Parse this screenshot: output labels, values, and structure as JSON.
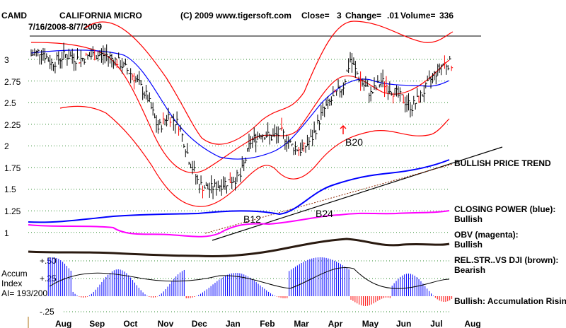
{
  "chart_data": {
    "type": "line",
    "title": {
      "ticker": "CAMD",
      "company": "CALIFORNIA MICRO",
      "source": "(C) 2009 www.tigersoft.com",
      "close_label": "Close=",
      "close_value": "3",
      "change_label": "Change=",
      "change_value": ".01",
      "volume_label": "Volume=",
      "volume_value": "336",
      "date_range": "7/16/2008-8/7/2009"
    },
    "price_axis": {
      "ticks": [
        "3",
        "2.75",
        "2.5",
        "2.25",
        "2",
        "1.75",
        "1.5",
        "1.25",
        "1"
      ],
      "values": [
        3,
        2.75,
        2.5,
        2.25,
        2,
        1.75,
        1.5,
        1.25,
        1
      ]
    },
    "accum_axis": {
      "ticks": [
        "+.50",
        "+.25",
        "-.25"
      ],
      "values": [
        0.5,
        0.25,
        -0.25
      ]
    },
    "x_axis": {
      "months": [
        "Aug",
        "Sep",
        "Oct",
        "Nov",
        "Dec",
        "Jan",
        "Feb",
        "Mar",
        "Apr",
        "May",
        "Jun",
        "Jul",
        "Aug"
      ]
    },
    "accum_label": {
      "line1": "Accum",
      "line2": "Index",
      "line3": "AI= 193/200"
    },
    "annotations": {
      "bullish_trend": "BULLISH PRICE TREND",
      "closing_power": "CLOSING POWER (blue):",
      "closing_power_state": "Bullish",
      "obv": "OBV (magenta):",
      "obv_state": "Bullish",
      "relstr": "REL.STR..VS DJI (brown):",
      "relstr_state": "Bearish",
      "accum_state": "Bullish: Accumulation Rising"
    },
    "signals": [
      {
        "label": "B20",
        "x": "late Apr 2009",
        "y": 2.0
      },
      {
        "label": "B12",
        "x": "mid Feb 2009",
        "y": 1.1
      },
      {
        "label": "B24",
        "x": "late Mar 2009",
        "y": 1.15
      }
    ],
    "price_series": [
      {
        "t": 0.0,
        "v": 3.05
      },
      {
        "t": 0.3,
        "v": 3.1
      },
      {
        "t": 0.6,
        "v": 2.95
      },
      {
        "t": 1.0,
        "v": 3.05
      },
      {
        "t": 1.4,
        "v": 3.0
      },
      {
        "t": 1.8,
        "v": 3.05
      },
      {
        "t": 2.2,
        "v": 3.05
      },
      {
        "t": 2.6,
        "v": 2.95
      },
      {
        "t": 3.0,
        "v": 2.8
      },
      {
        "t": 3.4,
        "v": 2.55
      },
      {
        "t": 3.7,
        "v": 2.2
      },
      {
        "t": 4.0,
        "v": 2.35
      },
      {
        "t": 4.3,
        "v": 2.25
      },
      {
        "t": 4.6,
        "v": 1.85
      },
      {
        "t": 4.9,
        "v": 1.55
      },
      {
        "t": 5.2,
        "v": 1.5
      },
      {
        "t": 5.5,
        "v": 1.55
      },
      {
        "t": 5.8,
        "v": 1.6
      },
      {
        "t": 6.1,
        "v": 1.65
      },
      {
        "t": 6.4,
        "v": 2.05
      },
      {
        "t": 6.7,
        "v": 2.15
      },
      {
        "t": 7.0,
        "v": 2.1
      },
      {
        "t": 7.3,
        "v": 2.15
      },
      {
        "t": 7.6,
        "v": 2.0
      },
      {
        "t": 7.9,
        "v": 1.95
      },
      {
        "t": 8.2,
        "v": 2.1
      },
      {
        "t": 8.5,
        "v": 2.4
      },
      {
        "t": 8.8,
        "v": 2.55
      },
      {
        "t": 9.1,
        "v": 2.7
      },
      {
        "t": 9.3,
        "v": 3.0
      },
      {
        "t": 9.6,
        "v": 2.75
      },
      {
        "t": 9.9,
        "v": 2.6
      },
      {
        "t": 10.2,
        "v": 2.75
      },
      {
        "t": 10.5,
        "v": 2.65
      },
      {
        "t": 10.8,
        "v": 2.55
      },
      {
        "t": 11.1,
        "v": 2.45
      },
      {
        "t": 11.4,
        "v": 2.6
      },
      {
        "t": 11.7,
        "v": 2.8
      },
      {
        "t": 12.0,
        "v": 2.95
      },
      {
        "t": 12.3,
        "v": 2.95
      }
    ],
    "legend_colors": {
      "closing_power": "#0000ff",
      "obv": "#ff00ff",
      "relstr": "#8b2500",
      "accum": "#0000ff",
      "bands": "#ff0000"
    }
  }
}
